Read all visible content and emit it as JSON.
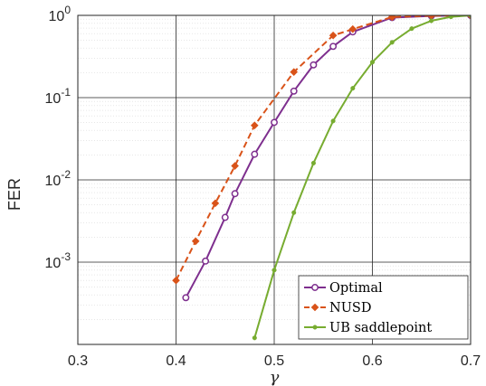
{
  "chart_data": {
    "type": "line",
    "xlabel": "γ",
    "ylabel": "FER",
    "yscale": "log",
    "xlim": [
      0.3,
      0.7
    ],
    "ylim": [
      0.0001,
      1
    ],
    "x_ticks": [
      "0.3",
      "0.4",
      "0.5",
      "0.6",
      "0.7"
    ],
    "y_ticks": [
      {
        "base": "10",
        "exp": "0",
        "value": 1
      },
      {
        "base": "10",
        "exp": "-1",
        "value": 0.1
      },
      {
        "base": "10",
        "exp": "-2",
        "value": 0.01
      },
      {
        "base": "10",
        "exp": "-3",
        "value": 0.001
      }
    ],
    "grid": true,
    "legend_position": "bottom-right",
    "series": [
      {
        "name": "Optimal",
        "color": "#7E2F8E",
        "dash": "solid",
        "marker": "circle",
        "x": [
          0.41,
          0.43,
          0.45,
          0.46,
          0.48,
          0.5,
          0.52,
          0.54,
          0.56,
          0.58,
          0.62,
          0.66,
          0.7
        ],
        "y": [
          0.00037,
          0.00103,
          0.0035,
          0.0068,
          0.0205,
          0.05,
          0.12,
          0.25,
          0.42,
          0.63,
          0.94,
          0.985,
          1.0
        ]
      },
      {
        "name": "NUSD",
        "color": "#D95319",
        "dash": "dashed",
        "marker": "diamond",
        "x": [
          0.4,
          0.42,
          0.44,
          0.46,
          0.48,
          0.52,
          0.56,
          0.58,
          0.62,
          0.66,
          0.7
        ],
        "y": [
          0.0006,
          0.0018,
          0.0052,
          0.0148,
          0.046,
          0.205,
          0.57,
          0.68,
          0.955,
          0.99,
          1.0
        ]
      },
      {
        "name": "UB saddlepoint",
        "color": "#77AC30",
        "dash": "solid",
        "marker": "dot",
        "x": [
          0.48,
          0.5,
          0.52,
          0.54,
          0.56,
          0.58,
          0.6,
          0.62,
          0.64,
          0.66,
          0.68,
          0.7
        ],
        "y": [
          0.00012,
          0.0008,
          0.004,
          0.016,
          0.052,
          0.13,
          0.27,
          0.47,
          0.69,
          0.86,
          0.96,
          1.0
        ]
      }
    ]
  }
}
